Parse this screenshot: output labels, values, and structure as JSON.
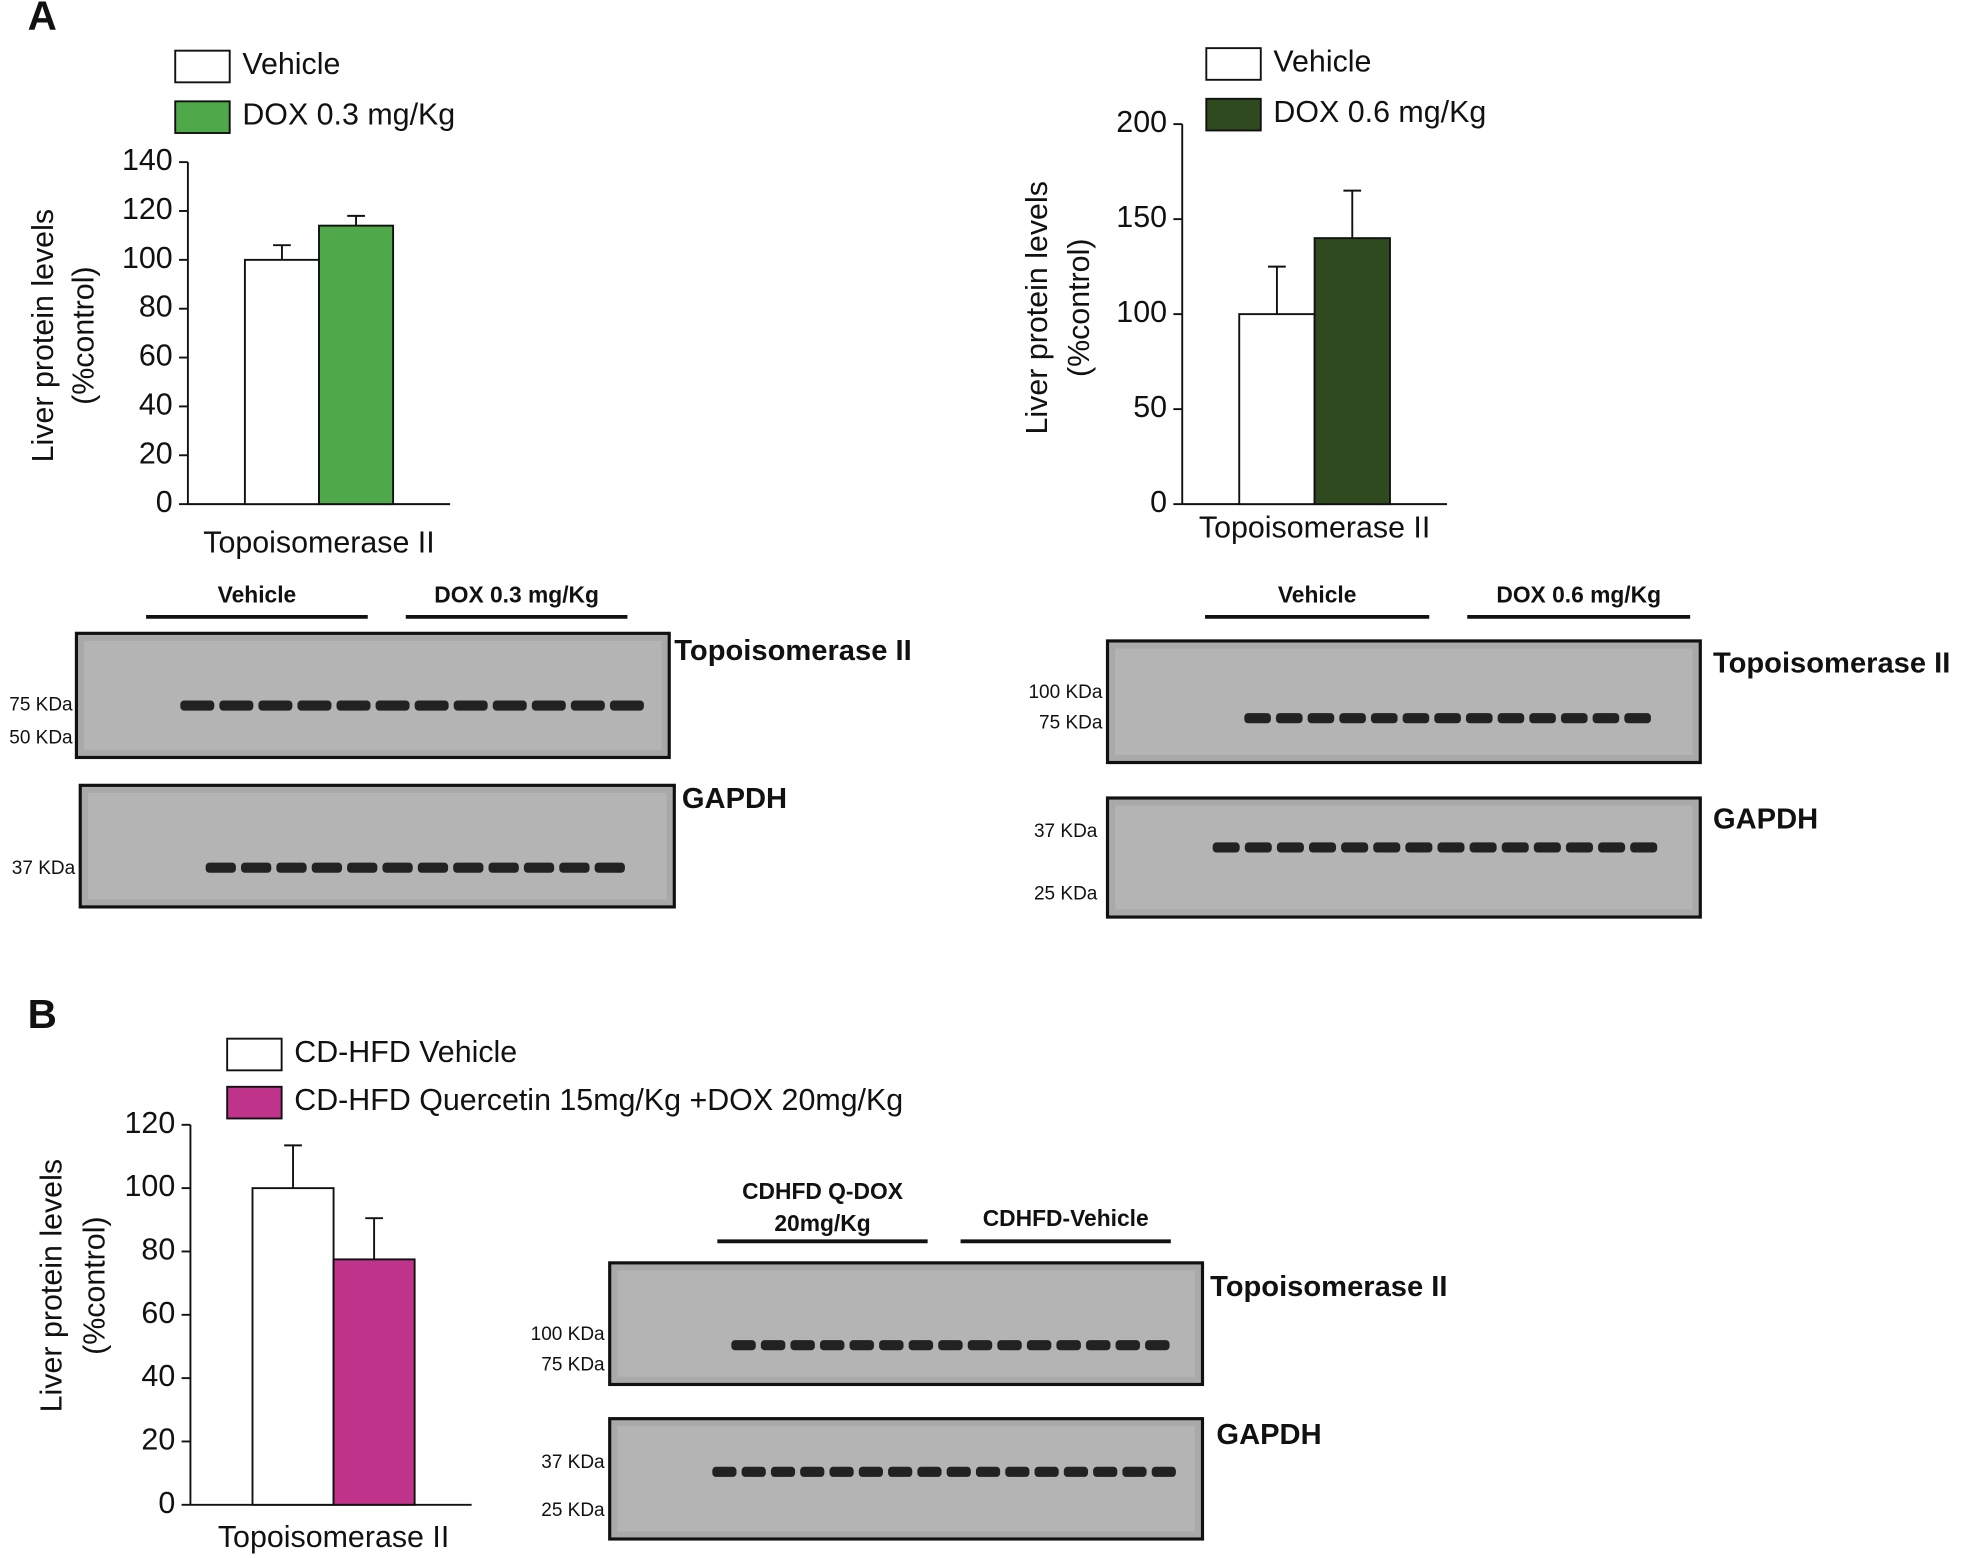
{
  "panel_labels": [
    "A",
    "B"
  ],
  "chart_data": [
    {
      "type": "bar",
      "categories": [
        "Topoisomerase II"
      ],
      "ylabel": [
        "Liver protein levels",
        "(%control)"
      ],
      "series": [
        {
          "name": "Vehicle",
          "color": "#ffffff",
          "values": [
            100
          ],
          "errors": [
            6
          ]
        },
        {
          "name": "DOX 0.3 mg/Kg",
          "color": "#4fa84a",
          "values": [
            114
          ],
          "errors": [
            4
          ]
        }
      ],
      "ylim": [
        0,
        140
      ],
      "yticks": [
        0,
        20,
        40,
        60,
        80,
        100,
        120,
        140
      ]
    },
    {
      "type": "bar",
      "categories": [
        "Topoisomerase II"
      ],
      "ylabel": [
        "Liver protein levels",
        "(%control)"
      ],
      "series": [
        {
          "name": "Vehicle",
          "color": "#ffffff",
          "values": [
            100
          ],
          "errors": [
            25
          ]
        },
        {
          "name": "DOX 0.6 mg/Kg",
          "color": "#2f4a1f",
          "values": [
            140
          ],
          "errors": [
            25
          ]
        }
      ],
      "ylim": [
        0,
        200
      ],
      "yticks": [
        0,
        50,
        100,
        150,
        200
      ]
    },
    {
      "type": "bar",
      "categories": [
        "Topoisomerase II"
      ],
      "ylabel": [
        "Liver protein levels",
        "(%control)"
      ],
      "series": [
        {
          "name": "CD-HFD Vehicle",
          "color": "#ffffff",
          "values": [
            100
          ],
          "errors": [
            13.5
          ]
        },
        {
          "name": "CD-HFD Quercetin 15mg/Kg +DOX 20mg/Kg",
          "color": "#c0338a",
          "values": [
            77.5
          ],
          "errors": [
            13
          ]
        }
      ],
      "ylim": [
        0,
        120
      ],
      "yticks": [
        0,
        20,
        40,
        60,
        80,
        100,
        120
      ]
    }
  ],
  "blots": [
    {
      "groups": [
        [
          "Vehicle"
        ],
        [
          "DOX 0.3 mg/Kg"
        ]
      ],
      "panels": [
        {
          "name": "Topoisomerase II",
          "markers": [
            "75 KDa",
            "50 KDa"
          ]
        },
        {
          "name": "GAPDH",
          "markers": [
            "37 KDa"
          ]
        }
      ]
    },
    {
      "groups": [
        [
          "Vehicle"
        ],
        [
          "DOX 0.6 mg/Kg"
        ]
      ],
      "panels": [
        {
          "name": "Topoisomerase II",
          "markers": [
            "100 KDa",
            "75 KDa"
          ]
        },
        {
          "name": "GAPDH",
          "markers": [
            "37 KDa",
            "25 KDa"
          ]
        }
      ]
    },
    {
      "groups": [
        [
          "CDHFD Q-DOX",
          "20mg/Kg"
        ],
        [
          "CDHFD-Vehicle"
        ]
      ],
      "panels": [
        {
          "name": "Topoisomerase II",
          "markers": [
            "100 KDa",
            "75 KDa"
          ]
        },
        {
          "name": "GAPDH",
          "markers": [
            "37 KDa",
            "25 KDa"
          ]
        }
      ]
    }
  ]
}
